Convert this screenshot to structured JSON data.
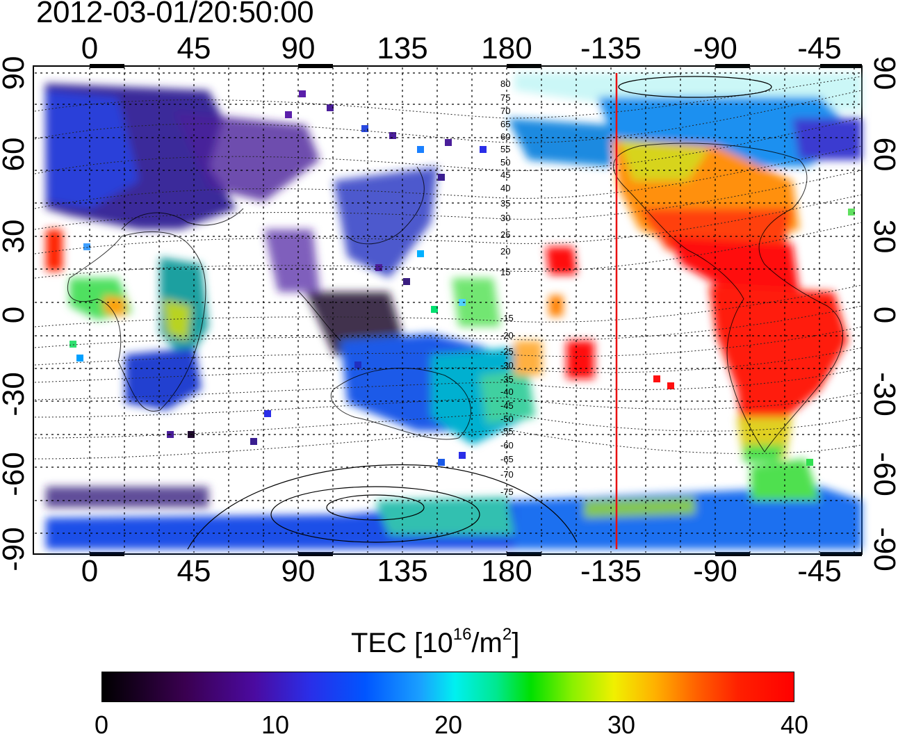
{
  "title": "2012-03-01/20:50:00",
  "map": {
    "lon_ticks_top": [
      "0",
      "45",
      "90",
      "135",
      "180",
      "-135",
      "-90",
      "-45"
    ],
    "lon_ticks_bottom": [
      "0",
      "45",
      "90",
      "135",
      "180",
      "-135",
      "-90",
      "-45"
    ],
    "lat_ticks_left": [
      "90",
      "60",
      "30",
      "0",
      "-30",
      "-60",
      "-90"
    ],
    "lat_ticks_right": [
      "90",
      "60",
      "30",
      "0",
      "-30",
      "-60",
      "-90"
    ],
    "contour_labels": [
      "80",
      "75",
      "70",
      "65",
      "60",
      "55",
      "50",
      "45",
      "40",
      "35",
      "30",
      "25",
      "20",
      "15",
      "-15",
      "-20",
      "-25",
      "-30",
      "-35",
      "-40",
      "-45",
      "-50",
      "-55",
      "-60",
      "-65",
      "-70",
      "-75"
    ],
    "terminator_line_color": "#e81010",
    "grid": "dotted"
  },
  "colorbar": {
    "label_text": "TEC  [10",
    "label_exp": "16",
    "label_unit": "/m",
    "label_unit_exp": "2",
    "label_close": "]",
    "ticks": [
      "0",
      "10",
      "20",
      "30",
      "40"
    ],
    "range": [
      0,
      40
    ]
  }
}
